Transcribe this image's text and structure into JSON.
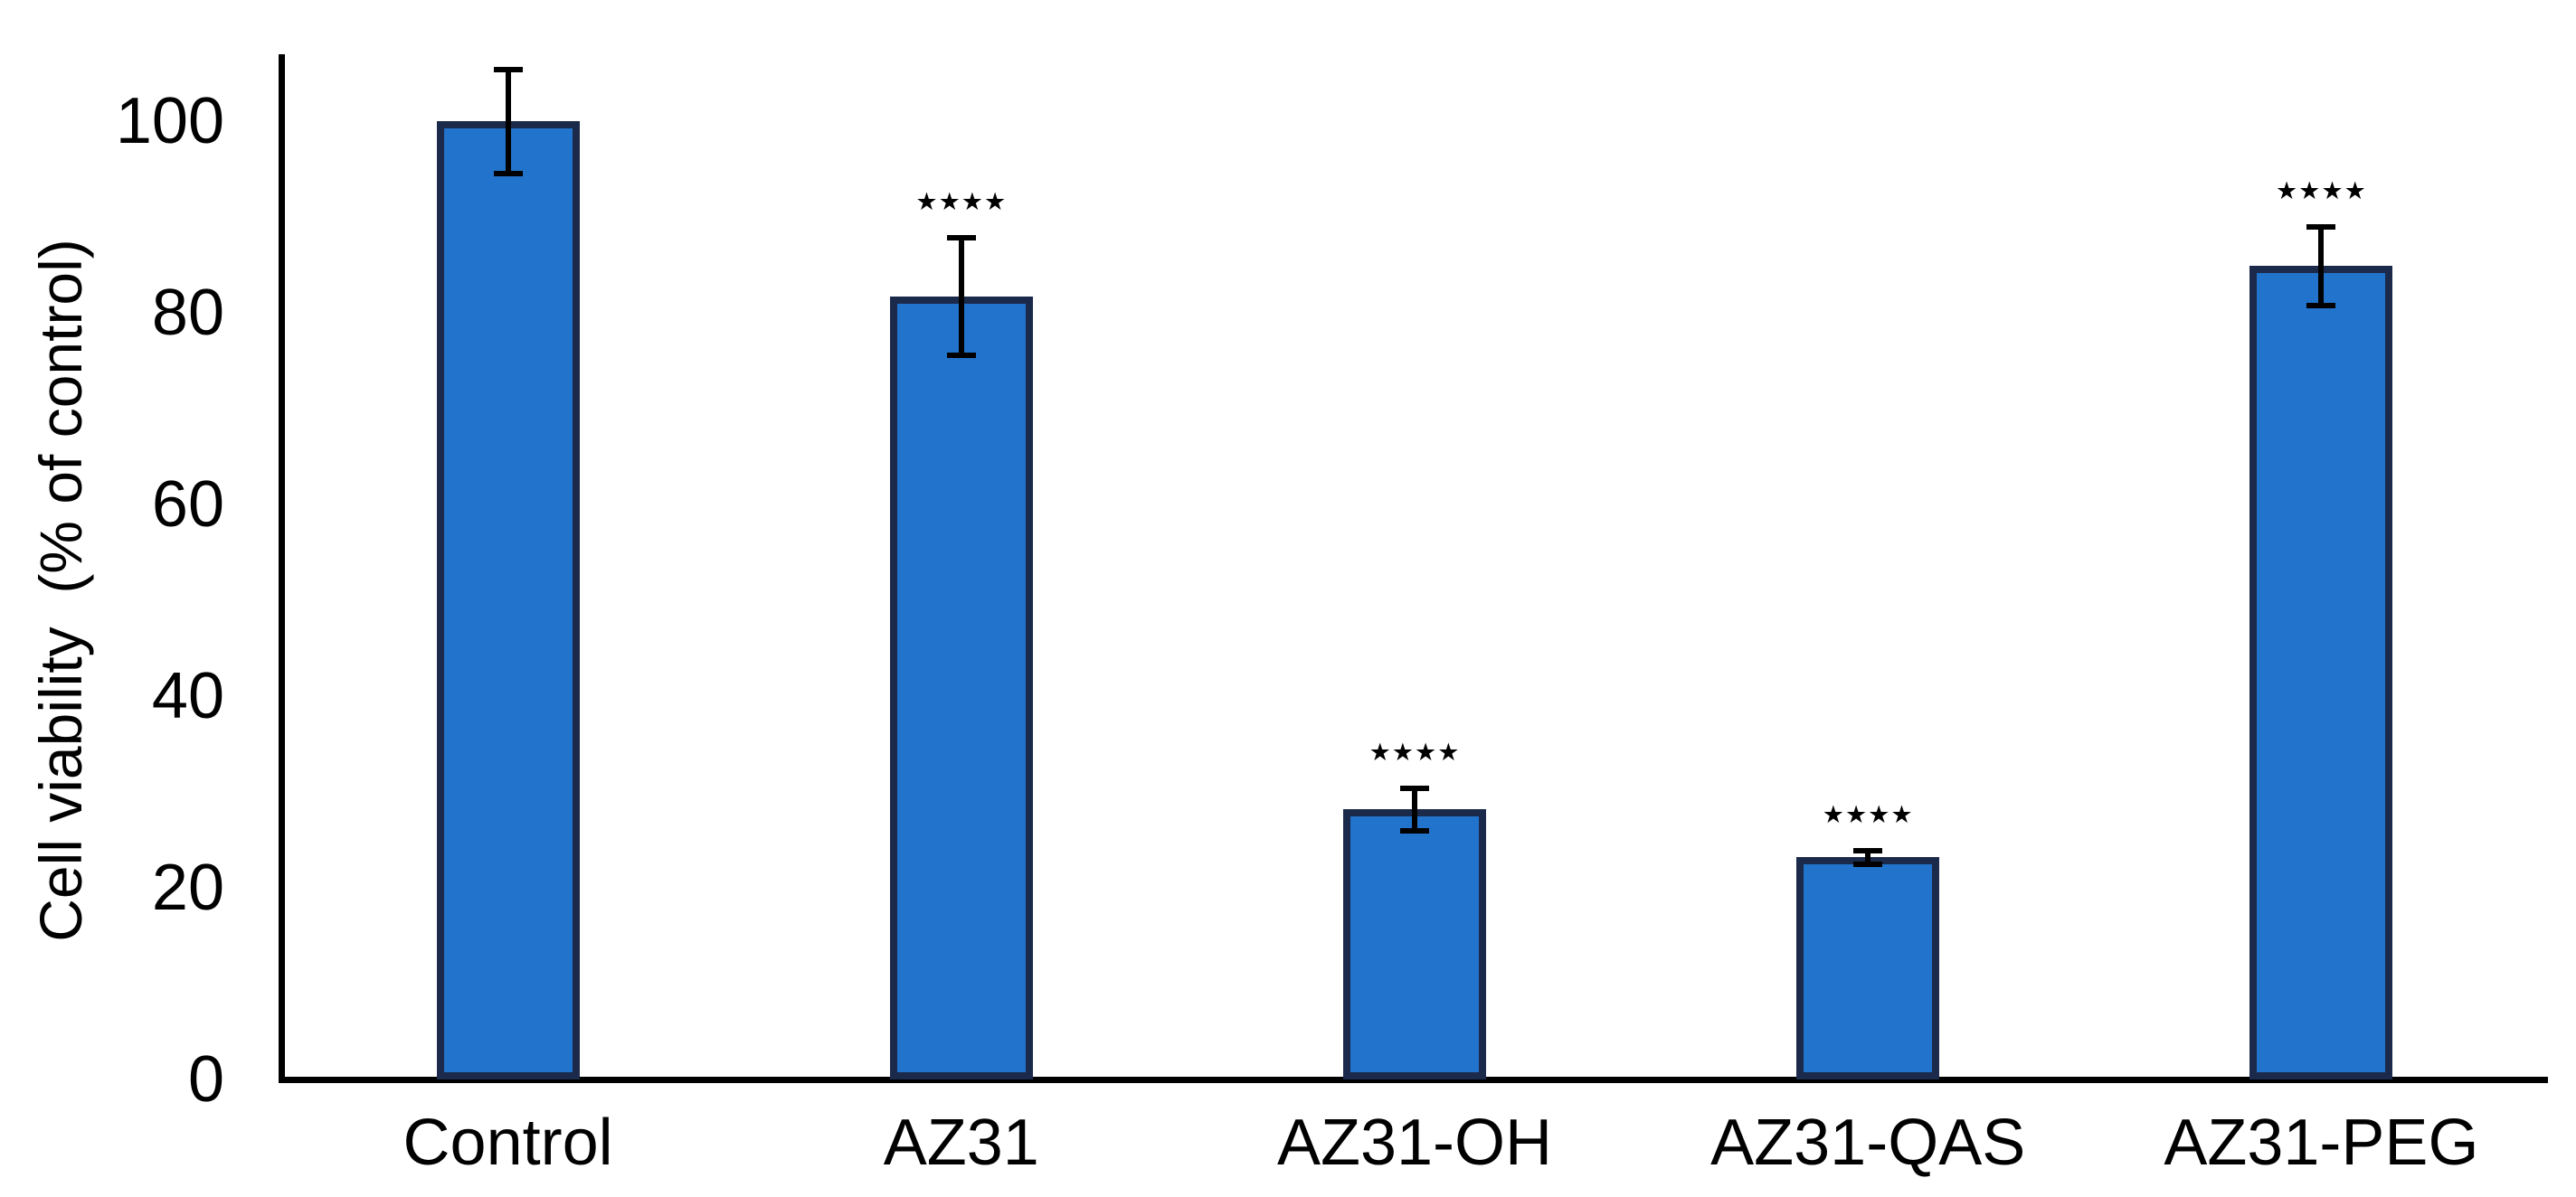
{
  "figure": {
    "background_color": "#ffffff",
    "text_color": "#000000",
    "axis_color": "#000000"
  },
  "chart_data": {
    "type": "bar",
    "title": "",
    "xlabel": "",
    "ylabel": "Cell viability  (% of control)",
    "categories": [
      "Control",
      "AZ31",
      "AZ31-OH",
      "AZ31-QAS",
      "AZ31-PEG"
    ],
    "values": [
      100.0,
      81.7,
      28.2,
      23.2,
      84.9
    ],
    "errors": [
      5.7,
      6.4,
      2.5,
      1.0,
      4.4
    ],
    "significance": [
      "",
      "****",
      "****",
      "****",
      "****"
    ],
    "significance_glyph": "★",
    "yticks": [
      0,
      20,
      40,
      60,
      80,
      100
    ],
    "ylim": [
      0,
      107
    ],
    "grid": false,
    "legend": "none",
    "bar_fill_color": "#2173CB",
    "bar_border_color": "#1B2A4A",
    "error_bar_color": "#000000"
  }
}
